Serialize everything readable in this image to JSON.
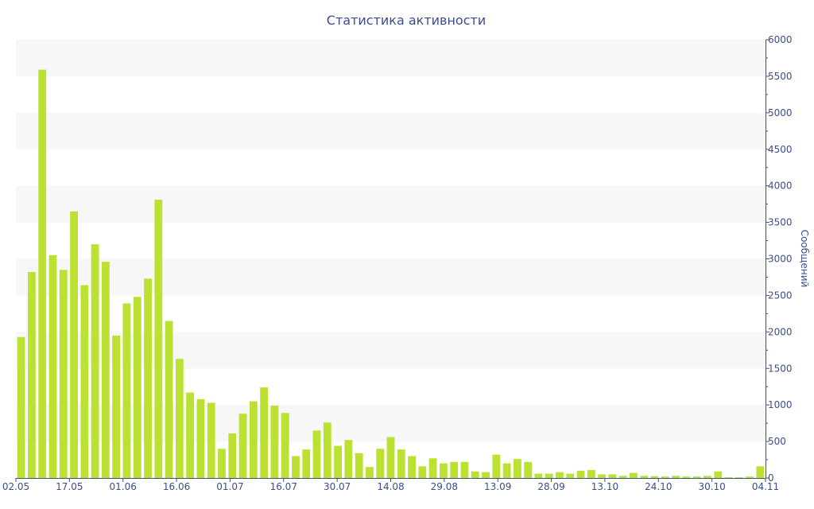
{
  "title": "Статистика активности",
  "colors": {
    "bar": "#bbe232",
    "band": "#f7f7f7",
    "axis": "#3b4e8c",
    "text": "#3b4e8c"
  },
  "chart_data": {
    "type": "bar",
    "title": "Статистика активности",
    "xlabel": "",
    "ylabel": "Сообщений",
    "y_axis_position": "right",
    "ylim": [
      0,
      6000
    ],
    "y_ticks": [
      0,
      500,
      1000,
      1500,
      2000,
      2500,
      3000,
      3500,
      4000,
      4500,
      5000,
      5500,
      6000
    ],
    "x_tick_labels": [
      "02.05",
      "17.05",
      "01.06",
      "16.06",
      "01.07",
      "16.07",
      "30.07",
      "14.08",
      "29.08",
      "13.09",
      "28.09",
      "13.10",
      "24.10",
      "30.10",
      "04.11"
    ],
    "grid": "alternating horizontal bands",
    "legend": "none",
    "values": [
      1930,
      2820,
      5590,
      3050,
      2850,
      3650,
      2640,
      3200,
      2960,
      1950,
      2390,
      2480,
      2730,
      3810,
      2150,
      1630,
      1170,
      1080,
      1030,
      400,
      610,
      880,
      1050,
      1240,
      990,
      890,
      300,
      390,
      650,
      760,
      440,
      520,
      340,
      150,
      400,
      560,
      390,
      300,
      160,
      270,
      200,
      220,
      220,
      90,
      80,
      320,
      200,
      260,
      220,
      60,
      60,
      80,
      60,
      100,
      110,
      50,
      50,
      30,
      70,
      30,
      25,
      20,
      30,
      20,
      20,
      30,
      90,
      10,
      10,
      20,
      160
    ]
  }
}
